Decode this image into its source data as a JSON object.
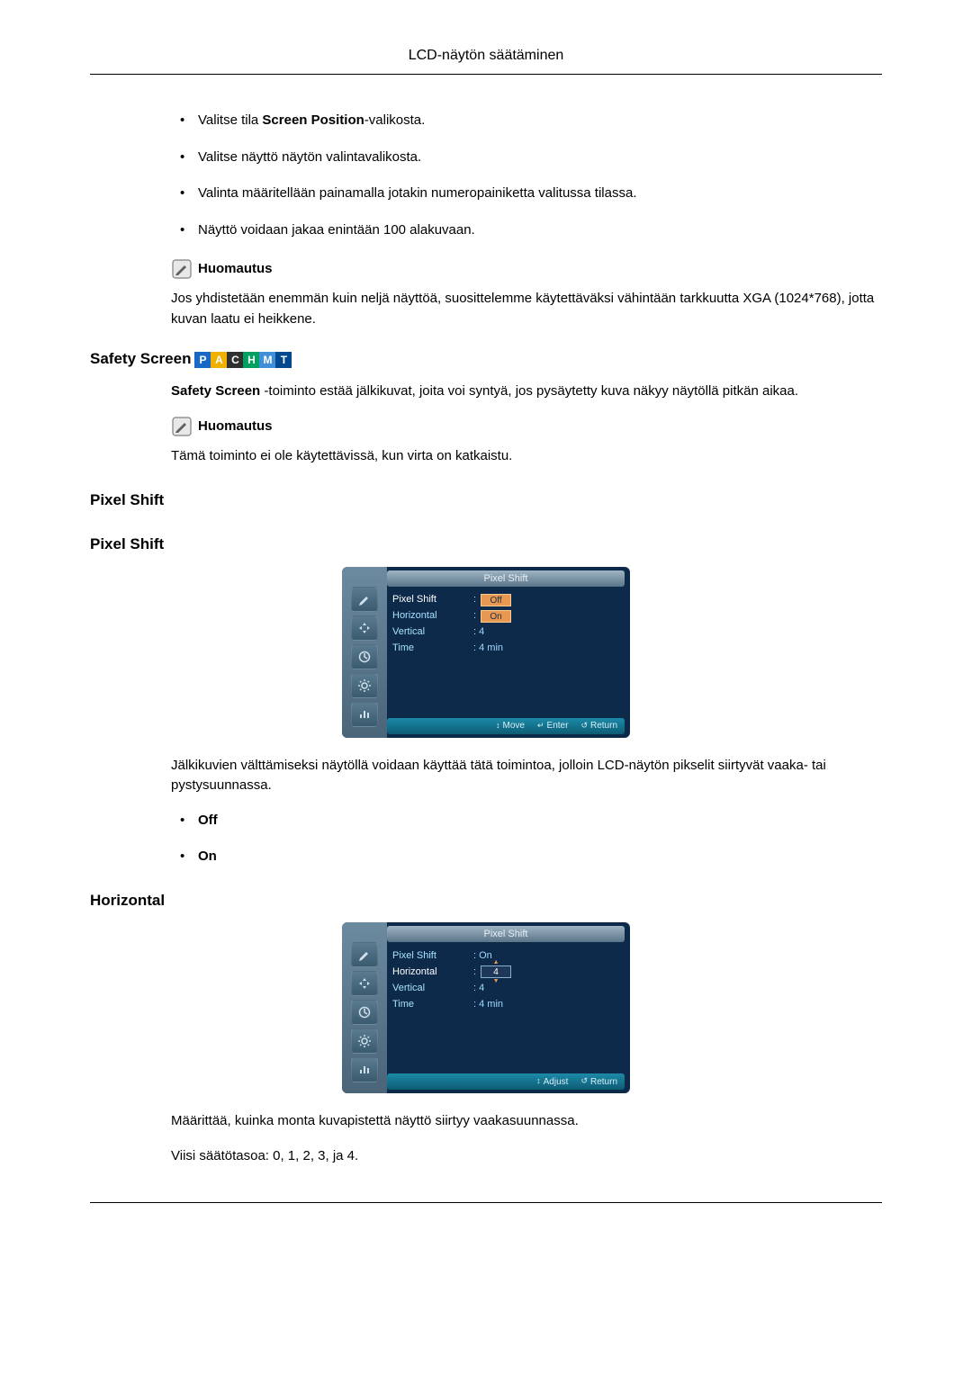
{
  "header": {
    "title": "LCD-näytön säätäminen"
  },
  "intro": {
    "bullets": [
      {
        "prefix": "Valitse tila ",
        "bold": "Screen Position",
        "suffix": "-valikosta."
      },
      {
        "prefix": "Valitse näyttö näytön valintavalikosta.",
        "bold": "",
        "suffix": ""
      },
      {
        "prefix": "Valinta määritellään painamalla jotakin numeropainiketta valitussa tilassa.",
        "bold": "",
        "suffix": ""
      },
      {
        "prefix": "Näyttö voidaan jakaa enintään 100 alakuvaan.",
        "bold": "",
        "suffix": ""
      }
    ],
    "note_label": "Huomautus",
    "note_text": "Jos yhdistetään enemmän kuin neljä näyttöä, suosittelemme käytettäväksi vähintään tarkkuutta XGA (1024*768), jotta kuvan laatu ei heikkene."
  },
  "safety_screen": {
    "title": "Safety Screen",
    "badges": [
      {
        "letter": "P",
        "bg": "#1868c8"
      },
      {
        "letter": "A",
        "bg": "#f0b000"
      },
      {
        "letter": "C",
        "bg": "#303030"
      },
      {
        "letter": "H",
        "bg": "#00a060"
      },
      {
        "letter": "M",
        "bg": "#4090d8"
      },
      {
        "letter": "T",
        "bg": "#004890"
      }
    ],
    "text_prefix_bold": "Safety Screen",
    "text_rest": " -toiminto estää jälkikuvat, joita voi syntyä, jos pysäytetty kuva näkyy näytöllä pitkän aikaa.",
    "note_label": "Huomautus",
    "note_text": "Tämä toiminto ei ole käytettävissä, kun virta on katkaistu."
  },
  "pixel_shift": {
    "title1": "Pixel Shift",
    "title2": "Pixel Shift",
    "osd1": {
      "header": "Pixel Shift",
      "bg": "#0d2a4a",
      "left_bg": "#6b8aa0",
      "header_bg": "linear-gradient(#9fb5c4,#5a7488)",
      "header_color": "#e8f0f8",
      "text_color": "#a7e3ff",
      "highlight_color": "#ffffff",
      "val_color": "#9fd8ff",
      "selbox_bg": "#e89850",
      "selbox_border": "#f8c890",
      "selbox_text": "#203048",
      "rows": [
        {
          "label": "Pixel Shift",
          "value": "Off",
          "boxed": true,
          "highlight": true
        },
        {
          "label": "Horizontal",
          "value": "On",
          "boxed": true,
          "highlight": false
        },
        {
          "label": "Vertical",
          "value": ": 4",
          "boxed": false
        },
        {
          "label": "Time",
          "value": ": 4 min",
          "boxed": false
        }
      ],
      "footer": [
        {
          "icon": "↕",
          "text": "Move"
        },
        {
          "icon": "↵",
          "text": "Enter"
        },
        {
          "icon": "↺",
          "text": "Return"
        }
      ],
      "footer_bg": "linear-gradient(#1c8aa8,#0e5c74)"
    },
    "desc": "Jälkikuvien välttämiseksi näytöllä voidaan käyttää tätä toimintoa, jolloin LCD-näytön pikselit siirtyvät vaaka- tai pystysuunnassa.",
    "options": [
      "Off",
      "On"
    ]
  },
  "horizontal": {
    "title": "Horizontal",
    "osd2": {
      "header": "Pixel Shift",
      "bg": "#0d2a4a",
      "left_bg": "#6b8aa0",
      "header_bg": "linear-gradient(#9fb5c4,#5a7488)",
      "header_color": "#e8f0f8",
      "text_color": "#a7e3ff",
      "highlight_color": "#ffffff",
      "val_color": "#9fd8ff",
      "selbox_bg": "#203858",
      "selbox_border": "#88b0d0",
      "selbox_text": "#ffffff",
      "rows": [
        {
          "label": "Pixel Shift",
          "value": ": On",
          "boxed": false
        },
        {
          "label": "Horizontal",
          "value": "4",
          "boxed": true,
          "highlight": true,
          "arrows": true
        },
        {
          "label": "Vertical",
          "value": ": 4",
          "boxed": false
        },
        {
          "label": "Time",
          "value": ": 4 min",
          "boxed": false
        }
      ],
      "footer": [
        {
          "icon": "↕",
          "text": "Adjust"
        },
        {
          "icon": "↺",
          "text": "Return"
        }
      ],
      "footer_bg": "linear-gradient(#1c8aa8,#0e5c74)"
    },
    "desc": "Määrittää, kuinka monta kuvapistettä näyttö siirtyy vaakasuunnassa.",
    "levels": "Viisi säätötasoa: 0, 1, 2, 3, ja 4."
  },
  "note_icon": {
    "border": "#808080",
    "fill": "#e8e8e8",
    "pencil": "#606060"
  },
  "osd_icons": {
    "bg1": "#5a7a90",
    "bg2": "#3a5a70",
    "icons": [
      "brush",
      "arrows",
      "clock",
      "gear",
      "chart"
    ]
  }
}
